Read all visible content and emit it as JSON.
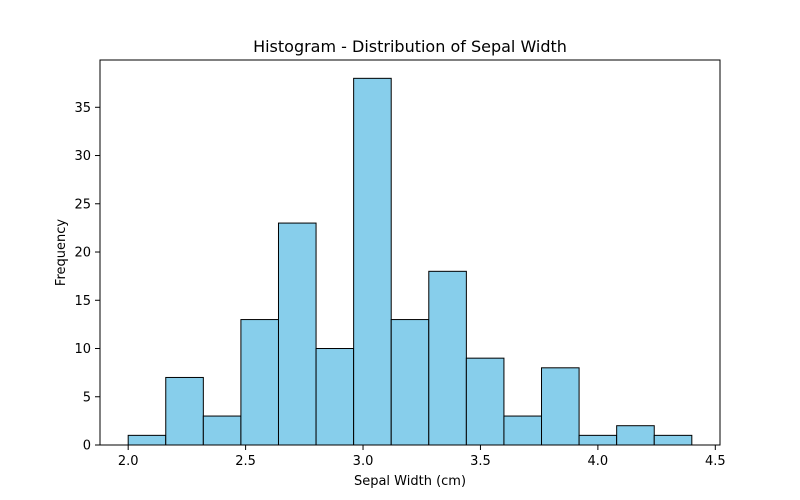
{
  "chart_data": {
    "type": "bar",
    "title": "Histogram - Distribution of Sepal Width",
    "xlabel": "Sepal Width (cm)",
    "ylabel": "Frequency",
    "bin_edges": [
      2.0,
      2.16,
      2.32,
      2.48,
      2.64,
      2.8,
      2.96,
      3.12,
      3.28,
      3.44,
      3.6,
      3.76,
      3.92,
      4.08,
      4.24,
      4.4
    ],
    "values": [
      1,
      7,
      3,
      13,
      23,
      10,
      38,
      13,
      18,
      9,
      3,
      8,
      1,
      2,
      1
    ],
    "xlim": [
      1.88,
      4.52
    ],
    "ylim": [
      0,
      39.9
    ],
    "xticks": [
      2.0,
      2.5,
      3.0,
      3.5,
      4.0,
      4.5
    ],
    "xtick_labels": [
      "2.0",
      "2.5",
      "3.0",
      "3.5",
      "4.0",
      "4.5"
    ],
    "yticks": [
      0,
      5,
      10,
      15,
      20,
      25,
      30,
      35
    ],
    "ytick_labels": [
      "0",
      "5",
      "10",
      "15",
      "20",
      "25",
      "30",
      "35"
    ],
    "bar_color": "#87ceeb",
    "edge_color": "#000000",
    "grid": false,
    "legend": "none"
  }
}
